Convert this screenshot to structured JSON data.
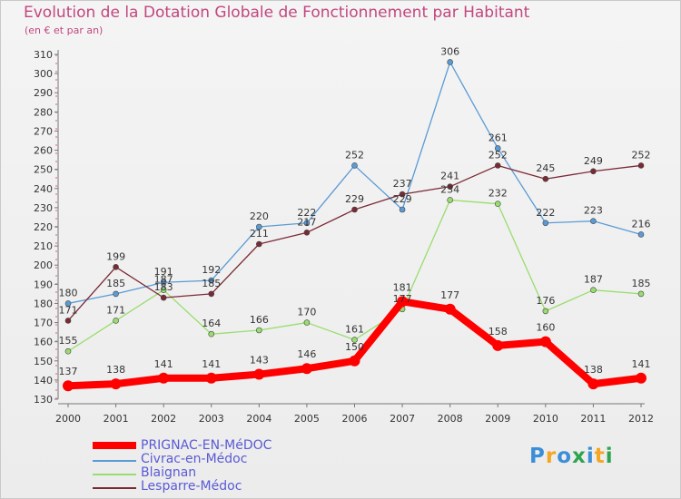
{
  "chart_data": {
    "type": "line",
    "title": "Evolution de la Dotation Globale de Fonctionnement par Habitant",
    "subtitle": "(en € et par an)",
    "x": [
      "2000",
      "2001",
      "2002",
      "2003",
      "2004",
      "2005",
      "2006",
      "2007",
      "2008",
      "2009",
      "2010",
      "2011",
      "2012"
    ],
    "ylim": [
      130,
      310
    ],
    "yticks": [
      130,
      140,
      150,
      160,
      170,
      180,
      190,
      200,
      210,
      220,
      230,
      240,
      250,
      260,
      270,
      280,
      290,
      300,
      310
    ],
    "grid": false,
    "series": [
      {
        "name": "Civrac-en-Médoc",
        "color": "#5b9bd5",
        "values": [
          180,
          185,
          191,
          192,
          220,
          222,
          252,
          229,
          306,
          261,
          222,
          223,
          216
        ]
      },
      {
        "name": "Blaignan",
        "color": "#99dd6e",
        "values": [
          155,
          171,
          187,
          164,
          166,
          170,
          161,
          177,
          234,
          232,
          176,
          187,
          185
        ]
      },
      {
        "name": "Lesparre-Médoc",
        "color": "#7a2a35",
        "values": [
          171,
          199,
          183,
          185,
          211,
          217,
          229,
          237,
          241,
          252,
          245,
          249,
          252
        ]
      },
      {
        "name": "PRIGNAC-EN-MéDOC",
        "color": "#ff0000",
        "values": [
          137,
          138,
          141,
          141,
          143,
          146,
          150,
          181,
          177,
          158,
          160,
          138,
          141
        ]
      }
    ]
  },
  "legend": [
    {
      "label": "PRIGNAC-EN-MéDOC",
      "color": "#ff0000"
    },
    {
      "label": "Civrac-en-Médoc",
      "color": "#5b9bd5"
    },
    {
      "label": "Blaignan",
      "color": "#99dd6e"
    },
    {
      "label": "Lesparre-Médoc",
      "color": "#7a2a35"
    }
  ],
  "brand": {
    "letters": [
      "P",
      "r",
      "o",
      "x",
      "i",
      "t",
      "i"
    ],
    "colors": [
      "#3b8ed8",
      "#f5a623",
      "#3b8ed8",
      "#2ea44f",
      "#3b8ed8",
      "#f5a623",
      "#2ea44f"
    ]
  }
}
